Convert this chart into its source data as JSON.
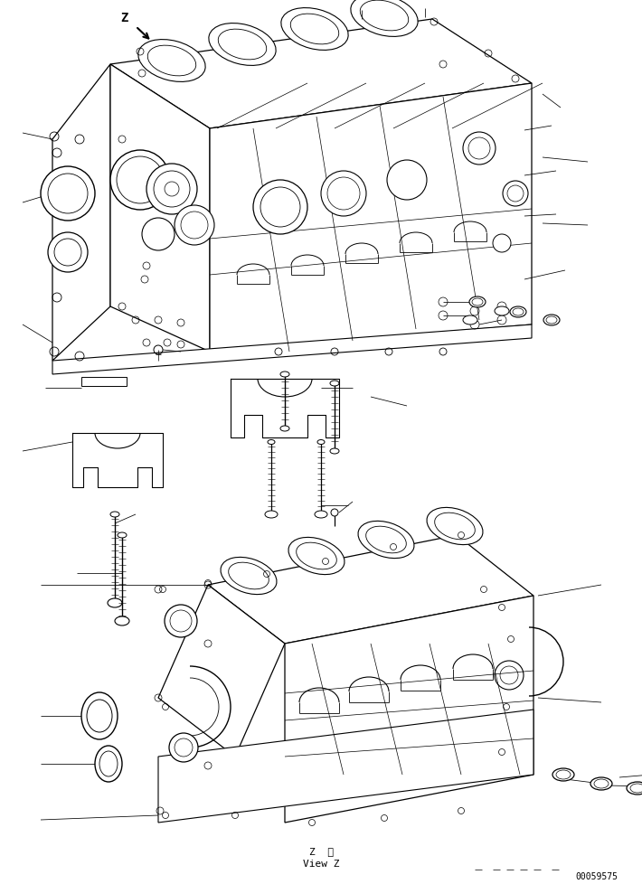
{
  "background_color": "#ffffff",
  "line_color": "#000000",
  "figsize": [
    7.1,
    9.79
  ],
  "dpi": 100,
  "label_z_top": "Z",
  "label_z_view": "Z  視",
  "label_view_z": "View Z",
  "doc_number": "00059575"
}
